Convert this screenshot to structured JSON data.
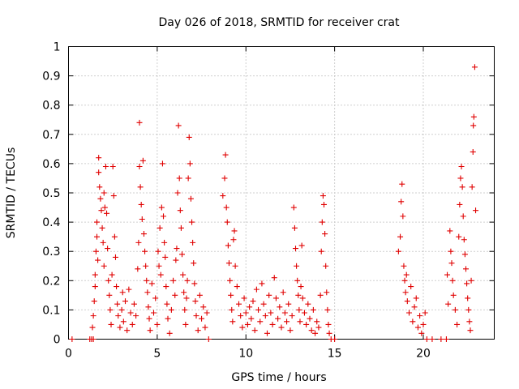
{
  "chart_data": {
    "type": "scatter",
    "title": "Day 026 of 2018, SRMTID for receiver crat",
    "xlabel": "GPS time / hours",
    "ylabel": "SRMTID / TECUs",
    "xlim": [
      0,
      24
    ],
    "ylim": [
      0,
      1
    ],
    "xticks": [
      {
        "value": 0,
        "label": "0"
      },
      {
        "value": 5,
        "label": "5"
      },
      {
        "value": 10,
        "label": "10"
      },
      {
        "value": 15,
        "label": "15"
      },
      {
        "value": 20,
        "label": "20"
      }
    ],
    "yticks": [
      {
        "value": 0,
        "label": "0"
      },
      {
        "value": 0.1,
        "label": "0.1"
      },
      {
        "value": 0.2,
        "label": "0.2"
      },
      {
        "value": 0.3,
        "label": "0.3"
      },
      {
        "value": 0.4,
        "label": "0.4"
      },
      {
        "value": 0.5,
        "label": "0.5"
      },
      {
        "value": 0.6,
        "label": "0.6"
      },
      {
        "value": 0.7,
        "label": "0.7"
      },
      {
        "value": 0.8,
        "label": "0.8"
      },
      {
        "value": 0.9,
        "label": "0.9"
      },
      {
        "value": 1,
        "label": "1"
      }
    ],
    "grid": true,
    "legend": "none",
    "marker": "plus",
    "series": [
      {
        "name": "SRMTID",
        "color": "#e00000",
        "points": [
          [
            0.2,
            0
          ],
          [
            1.2,
            0
          ],
          [
            1.3,
            0
          ],
          [
            1.4,
            0
          ],
          [
            1.35,
            0.04
          ],
          [
            1.4,
            0.08
          ],
          [
            1.45,
            0.13
          ],
          [
            1.5,
            0.18
          ],
          [
            1.5,
            0.22
          ],
          [
            1.55,
            0.3
          ],
          [
            1.6,
            0.35
          ],
          [
            1.6,
            0.4
          ],
          [
            1.65,
            0.27
          ],
          [
            1.7,
            0.62
          ],
          [
            1.7,
            0.57
          ],
          [
            1.75,
            0.52
          ],
          [
            1.8,
            0.48
          ],
          [
            1.85,
            0.44
          ],
          [
            1.9,
            0.38
          ],
          [
            1.95,
            0.33
          ],
          [
            2.0,
            0.25
          ],
          [
            2.0,
            0.5
          ],
          [
            2.05,
            0.45
          ],
          [
            2.1,
            0.59
          ],
          [
            2.15,
            0.43
          ],
          [
            2.2,
            0.31
          ],
          [
            2.25,
            0.2
          ],
          [
            2.3,
            0.15
          ],
          [
            2.35,
            0.1
          ],
          [
            2.4,
            0.05
          ],
          [
            2.45,
            0.22
          ],
          [
            2.5,
            0.59
          ],
          [
            2.55,
            0.49
          ],
          [
            2.6,
            0.35
          ],
          [
            2.65,
            0.28
          ],
          [
            2.7,
            0.18
          ],
          [
            2.75,
            0.12
          ],
          [
            2.8,
            0.08
          ],
          [
            2.9,
            0.04
          ],
          [
            3.0,
            0.1
          ],
          [
            3.05,
            0.16
          ],
          [
            3.1,
            0.06
          ],
          [
            3.2,
            0.13
          ],
          [
            3.3,
            0.03
          ],
          [
            3.4,
            0.17
          ],
          [
            3.5,
            0.09
          ],
          [
            3.6,
            0.05
          ],
          [
            3.7,
            0.12
          ],
          [
            3.8,
            0.08
          ],
          [
            3.9,
            0.24
          ],
          [
            3.95,
            0.33
          ],
          [
            4.0,
            0.59
          ],
          [
            4.0,
            0.74
          ],
          [
            4.05,
            0.52
          ],
          [
            4.1,
            0.46
          ],
          [
            4.15,
            0.41
          ],
          [
            4.2,
            0.61
          ],
          [
            4.25,
            0.36
          ],
          [
            4.3,
            0.3
          ],
          [
            4.35,
            0.25
          ],
          [
            4.4,
            0.2
          ],
          [
            4.45,
            0.16
          ],
          [
            4.5,
            0.11
          ],
          [
            4.55,
            0.07
          ],
          [
            4.6,
            0.03
          ],
          [
            4.7,
            0.19
          ],
          [
            4.8,
            0.09
          ],
          [
            4.9,
            0.14
          ],
          [
            5.0,
            0.05
          ],
          [
            5.05,
            0.3
          ],
          [
            5.1,
            0.25
          ],
          [
            5.15,
            0.38
          ],
          [
            5.2,
            0.22
          ],
          [
            5.25,
            0.45
          ],
          [
            5.3,
            0.6
          ],
          [
            5.35,
            0.42
          ],
          [
            5.4,
            0.33
          ],
          [
            5.45,
            0.28
          ],
          [
            5.5,
            0.18
          ],
          [
            5.55,
            0.12
          ],
          [
            5.6,
            0.07
          ],
          [
            5.7,
            0.02
          ],
          [
            5.8,
            0.1
          ],
          [
            5.9,
            0.2
          ],
          [
            6.0,
            0.15
          ],
          [
            6.05,
            0.27
          ],
          [
            6.1,
            0.31
          ],
          [
            6.15,
            0.5
          ],
          [
            6.2,
            0.73
          ],
          [
            6.25,
            0.55
          ],
          [
            6.3,
            0.44
          ],
          [
            6.35,
            0.38
          ],
          [
            6.4,
            0.29
          ],
          [
            6.45,
            0.22
          ],
          [
            6.5,
            0.16
          ],
          [
            6.55,
            0.1
          ],
          [
            6.6,
            0.05
          ],
          [
            6.65,
            0.14
          ],
          [
            6.7,
            0.2
          ],
          [
            6.75,
            0.55
          ],
          [
            6.8,
            0.69
          ],
          [
            6.85,
            0.6
          ],
          [
            6.9,
            0.48
          ],
          [
            6.95,
            0.4
          ],
          [
            7.0,
            0.33
          ],
          [
            7.05,
            0.26
          ],
          [
            7.1,
            0.19
          ],
          [
            7.15,
            0.13
          ],
          [
            7.2,
            0.08
          ],
          [
            7.3,
            0.03
          ],
          [
            7.4,
            0.15
          ],
          [
            7.5,
            0.07
          ],
          [
            7.6,
            0.11
          ],
          [
            7.7,
            0.04
          ],
          [
            7.8,
            0.09
          ],
          [
            7.9,
            0
          ],
          [
            8.7,
            0.49
          ],
          [
            8.8,
            0.55
          ],
          [
            8.85,
            0.63
          ],
          [
            8.9,
            0.45
          ],
          [
            8.95,
            0.4
          ],
          [
            9.0,
            0.32
          ],
          [
            9.05,
            0.26
          ],
          [
            9.1,
            0.2
          ],
          [
            9.15,
            0.15
          ],
          [
            9.2,
            0.1
          ],
          [
            9.25,
            0.06
          ],
          [
            9.3,
            0.34
          ],
          [
            9.35,
            0.37
          ],
          [
            9.4,
            0.25
          ],
          [
            9.5,
            0.18
          ],
          [
            9.6,
            0.12
          ],
          [
            9.7,
            0.08
          ],
          [
            9.8,
            0.04
          ],
          [
            9.9,
            0.14
          ],
          [
            10.0,
            0.09
          ],
          [
            10.1,
            0.05
          ],
          [
            10.2,
            0.11
          ],
          [
            10.3,
            0.07
          ],
          [
            10.4,
            0.13
          ],
          [
            10.5,
            0.03
          ],
          [
            10.6,
            0.17
          ],
          [
            10.7,
            0.1
          ],
          [
            10.8,
            0.06
          ],
          [
            10.9,
            0.19
          ],
          [
            11.0,
            0.12
          ],
          [
            11.1,
            0.08
          ],
          [
            11.2,
            0.02
          ],
          [
            11.3,
            0.15
          ],
          [
            11.4,
            0.09
          ],
          [
            11.5,
            0.05
          ],
          [
            11.6,
            0.21
          ],
          [
            11.7,
            0.14
          ],
          [
            11.8,
            0.07
          ],
          [
            11.9,
            0.11
          ],
          [
            12.0,
            0.04
          ],
          [
            12.1,
            0.16
          ],
          [
            12.2,
            0.09
          ],
          [
            12.3,
            0.06
          ],
          [
            12.4,
            0.12
          ],
          [
            12.5,
            0.03
          ],
          [
            12.6,
            0.08
          ],
          [
            12.7,
            0.45
          ],
          [
            12.75,
            0.38
          ],
          [
            12.8,
            0.31
          ],
          [
            12.85,
            0.25
          ],
          [
            12.9,
            0.2
          ],
          [
            12.95,
            0.15
          ],
          [
            13.0,
            0.1
          ],
          [
            13.05,
            0.06
          ],
          [
            13.1,
            0.18
          ],
          [
            13.15,
            0.32
          ],
          [
            13.2,
            0.14
          ],
          [
            13.3,
            0.09
          ],
          [
            13.4,
            0.05
          ],
          [
            13.5,
            0.12
          ],
          [
            13.6,
            0.07
          ],
          [
            13.7,
            0.03
          ],
          [
            13.8,
            0.1
          ],
          [
            13.9,
            0.02
          ],
          [
            14.0,
            0.06
          ],
          [
            14.1,
            0.04
          ],
          [
            14.2,
            0.15
          ],
          [
            14.25,
            0.3
          ],
          [
            14.3,
            0.4
          ],
          [
            14.35,
            0.49
          ],
          [
            14.4,
            0.46
          ],
          [
            14.45,
            0.36
          ],
          [
            14.5,
            0.25
          ],
          [
            14.55,
            0.16
          ],
          [
            14.6,
            0.1
          ],
          [
            14.65,
            0.05
          ],
          [
            14.7,
            0.02
          ],
          [
            14.8,
            0
          ],
          [
            15.0,
            0
          ],
          [
            18.6,
            0.3
          ],
          [
            18.7,
            0.35
          ],
          [
            18.75,
            0.47
          ],
          [
            18.8,
            0.53
          ],
          [
            18.85,
            0.42
          ],
          [
            18.9,
            0.25
          ],
          [
            18.95,
            0.2
          ],
          [
            19.0,
            0.16
          ],
          [
            19.05,
            0.22
          ],
          [
            19.1,
            0.13
          ],
          [
            19.2,
            0.09
          ],
          [
            19.3,
            0.18
          ],
          [
            19.4,
            0.06
          ],
          [
            19.5,
            0.11
          ],
          [
            19.6,
            0.14
          ],
          [
            19.7,
            0.04
          ],
          [
            19.8,
            0.08
          ],
          [
            19.9,
            0.02
          ],
          [
            20.0,
            0.05
          ],
          [
            20.1,
            0.09
          ],
          [
            20.2,
            0
          ],
          [
            20.5,
            0
          ],
          [
            21.0,
            0
          ],
          [
            21.3,
            0
          ],
          [
            21.35,
            0.22
          ],
          [
            21.4,
            0.12
          ],
          [
            21.5,
            0.37
          ],
          [
            21.55,
            0.3
          ],
          [
            21.6,
            0.26
          ],
          [
            21.65,
            0.2
          ],
          [
            21.7,
            0.15
          ],
          [
            21.8,
            0.1
          ],
          [
            21.9,
            0.05
          ],
          [
            22.0,
            0.35
          ],
          [
            22.05,
            0.46
          ],
          [
            22.1,
            0.55
          ],
          [
            22.15,
            0.59
          ],
          [
            22.2,
            0.52
          ],
          [
            22.25,
            0.42
          ],
          [
            22.3,
            0.34
          ],
          [
            22.35,
            0.29
          ],
          [
            22.4,
            0.24
          ],
          [
            22.45,
            0.19
          ],
          [
            22.5,
            0.14
          ],
          [
            22.55,
            0.1
          ],
          [
            22.6,
            0.06
          ],
          [
            22.65,
            0.03
          ],
          [
            22.7,
            0.2
          ],
          [
            22.75,
            0.52
          ],
          [
            22.8,
            0.64
          ],
          [
            22.82,
            0.73
          ],
          [
            22.85,
            0.76
          ],
          [
            22.9,
            0.93
          ],
          [
            22.95,
            0.44
          ]
        ]
      }
    ]
  }
}
